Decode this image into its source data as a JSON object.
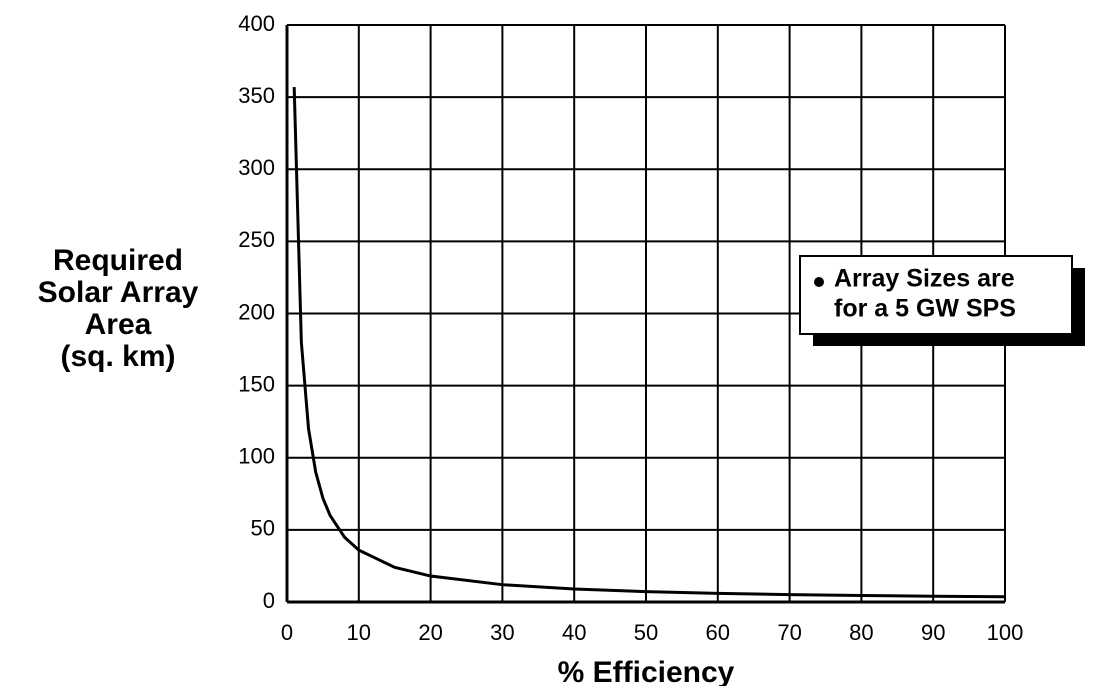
{
  "chart_data": {
    "type": "line",
    "ylabel": [
      "Required",
      "Solar Array",
      "Area",
      "(sq. km)"
    ],
    "xlabel": "% Efficiency",
    "annotation": [
      "Array Sizes are",
      "for a 5 GW SPS"
    ],
    "x": [
      1,
      2,
      3,
      4,
      5,
      6,
      8,
      10,
      15,
      20,
      30,
      40,
      50,
      60,
      70,
      80,
      90,
      100
    ],
    "series": [
      {
        "name": "Required area",
        "color": "#000000",
        "values": [
          357,
          180,
          120,
          90,
          72,
          60,
          45,
          36,
          24,
          18,
          12,
          9,
          7.2,
          6,
          5.1,
          4.5,
          4,
          3.6
        ]
      }
    ],
    "xlim": [
      0,
      100
    ],
    "xticks": [
      0,
      10,
      20,
      30,
      40,
      50,
      60,
      70,
      80,
      90,
      100
    ],
    "ylim": [
      0,
      400
    ],
    "yticks": [
      0,
      50,
      100,
      150,
      200,
      250,
      300,
      350,
      400
    ],
    "grid": true
  }
}
